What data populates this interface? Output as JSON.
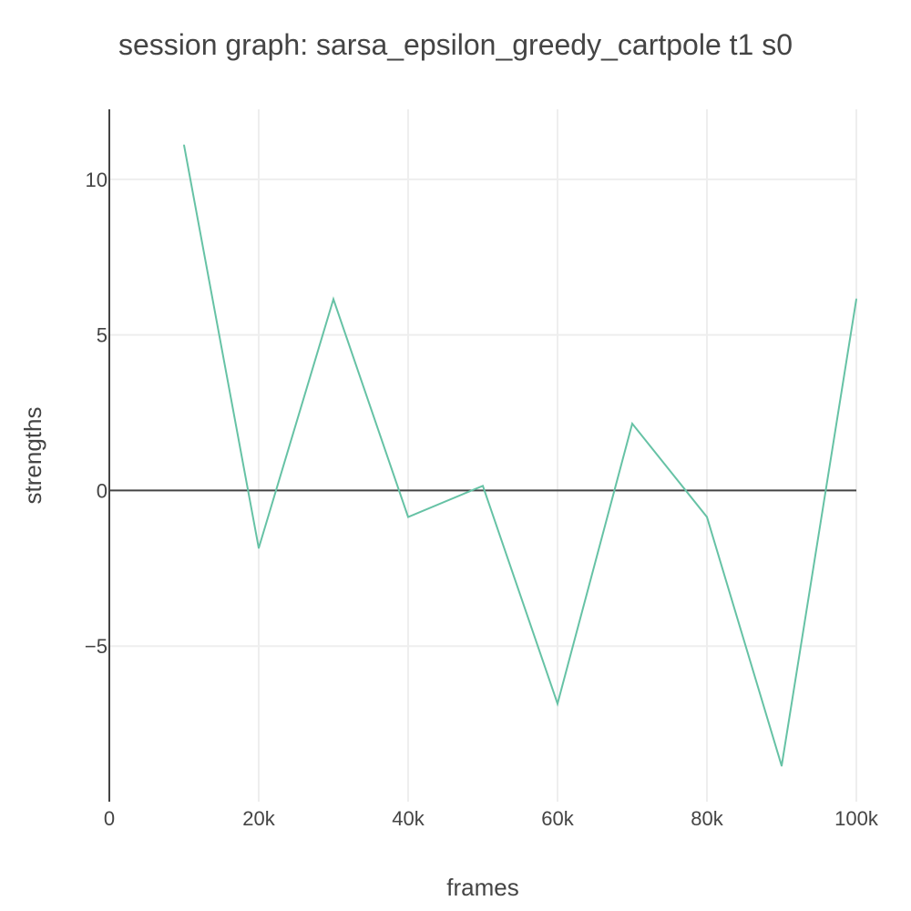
{
  "chart_data": {
    "type": "line",
    "title": "session graph: sarsa_epsilon_greedy_cartpole t1 s0",
    "xlabel": "frames",
    "ylabel": "strengths",
    "xlim": [
      0,
      100000
    ],
    "ylim": [
      -10,
      12.25
    ],
    "x_ticks": [
      0,
      20000,
      40000,
      60000,
      80000,
      100000
    ],
    "x_tick_labels": [
      "0",
      "20k",
      "40k",
      "60k",
      "80k",
      "100k"
    ],
    "y_ticks": [
      -5,
      0,
      5,
      10
    ],
    "y_tick_labels": [
      "−5",
      "0",
      "5",
      "10"
    ],
    "grid": true,
    "legend": "none",
    "series": [
      {
        "color": "#66c2a5",
        "x": [
          10000,
          20000,
          30000,
          40000,
          50000,
          60000,
          70000,
          80000,
          90000,
          100000
        ],
        "y": [
          11.1,
          -1.85,
          6.15,
          -0.85,
          0.15,
          -6.85,
          2.15,
          -0.85,
          -8.85,
          6.15
        ]
      }
    ]
  }
}
